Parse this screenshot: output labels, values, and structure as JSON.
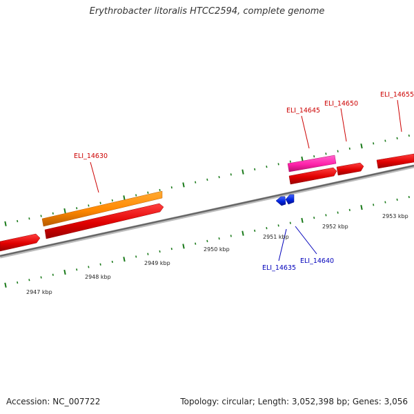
{
  "title": "Erythrobacter litoralis HTCC2594, complete genome",
  "footer": {
    "accession": "Accession: NC_007722",
    "summary": "Topology: circular; Length: 3,052,398 bp; Genes: 3,056"
  },
  "colors": {
    "backbone": "#777777",
    "tick": "#1a7a1a",
    "cds_red": "#ee0000",
    "cds_orange": "#ff8800",
    "cds_pink": "#ff22aa",
    "cds_blue": "#0022dd",
    "label_red": "#cc0000",
    "label_blue": "#0000bb"
  },
  "scale": {
    "labels": [
      "2947 kbp",
      "2948 kbp",
      "2949 kbp",
      "2950 kbp",
      "2951 kbp",
      "2952 kbp",
      "2953 kbp"
    ]
  },
  "genes": [
    {
      "name": "ELI_14630",
      "strand": "forward",
      "color": "orange"
    },
    {
      "name": "ELI_14645",
      "strand": "forward",
      "color": "pink"
    },
    {
      "name": "ELI_14650",
      "strand": "forward",
      "color": "red"
    },
    {
      "name": "ELI_14655",
      "strand": "forward",
      "color": "red"
    },
    {
      "name": "ELI_14635",
      "strand": "reverse",
      "color": "blue"
    },
    {
      "name": "ELI_14640",
      "strand": "reverse",
      "color": "blue"
    }
  ]
}
